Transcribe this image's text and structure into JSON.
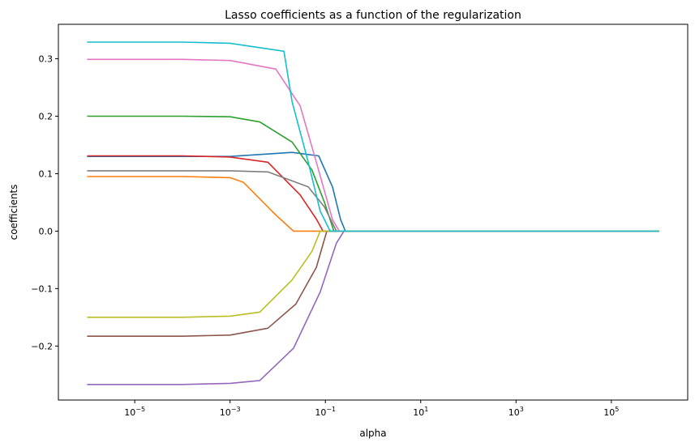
{
  "chart_data": {
    "type": "line",
    "title": "Lasso coefficients as a function of the regularization",
    "xlabel": "alpha",
    "ylabel": "coefficients",
    "xscale": "log",
    "xlim": [
      2.5e-07,
      4000000.0
    ],
    "ylim": [
      -0.294,
      0.36
    ],
    "grid": false,
    "x_ticks": [
      {
        "base": "10",
        "exp": "−5",
        "value": 1e-05
      },
      {
        "base": "10",
        "exp": "−3",
        "value": 0.001
      },
      {
        "base": "10",
        "exp": "−1",
        "value": 0.1
      },
      {
        "base": "10",
        "exp": "1",
        "value": 10
      },
      {
        "base": "10",
        "exp": "3",
        "value": 1000
      },
      {
        "base": "10",
        "exp": "5",
        "value": 100000
      }
    ],
    "y_ticks": [
      {
        "label": "−0.2",
        "value": -0.2
      },
      {
        "label": "−0.1",
        "value": -0.1
      },
      {
        "label": "0.0",
        "value": 0
      },
      {
        "label": "0.1",
        "value": 0.1
      },
      {
        "label": "0.2",
        "value": 0.2
      },
      {
        "label": "0.3",
        "value": 0.3
      }
    ],
    "series": [
      {
        "color": "#1f77b4",
        "x": [
          1e-06,
          0.0001,
          0.001,
          0.02,
          0.0724,
          0.141,
          0.209,
          0.263,
          1000000.0
        ],
        "y": [
          0.13,
          0.13,
          0.13,
          0.137,
          0.131,
          0.077,
          0.02,
          0,
          0
        ]
      },
      {
        "color": "#ff7f0e",
        "x": [
          1e-06,
          0.0001,
          0.001,
          0.0019,
          0.0091,
          0.0214,
          1000000.0
        ],
        "y": [
          0.095,
          0.095,
          0.093,
          0.085,
          0.028,
          0,
          0
        ]
      },
      {
        "color": "#2ca02c",
        "x": [
          1e-06,
          0.0001,
          0.001,
          0.0042,
          0.02,
          0.0525,
          0.0955,
          0.151,
          1000000.0
        ],
        "y": [
          0.2,
          0.2,
          0.199,
          0.19,
          0.155,
          0.106,
          0.05,
          0,
          0
        ]
      },
      {
        "color": "#d62728",
        "x": [
          1e-06,
          0.0001,
          0.001,
          0.0062,
          0.0295,
          0.0646,
          0.089,
          1000000.0
        ],
        "y": [
          0.131,
          0.131,
          0.129,
          0.12,
          0.063,
          0.021,
          0,
          0
        ]
      },
      {
        "color": "#9467bd",
        "x": [
          1e-06,
          0.0001,
          0.001,
          0.0042,
          0.0214,
          0.0776,
          0.17,
          0.245,
          1000000.0
        ],
        "y": [
          -0.267,
          -0.267,
          -0.265,
          -0.26,
          -0.204,
          -0.106,
          -0.021,
          0,
          0
        ]
      },
      {
        "color": "#8c564b",
        "x": [
          1e-06,
          0.0001,
          0.001,
          0.0062,
          0.024,
          0.0646,
          0.107,
          1000000.0
        ],
        "y": [
          -0.183,
          -0.183,
          -0.181,
          -0.169,
          -0.127,
          -0.063,
          0,
          0
        ]
      },
      {
        "color": "#e377c2",
        "x": [
          1e-06,
          0.0001,
          0.001,
          0.0091,
          0.0295,
          0.0646,
          0.141,
          0.195,
          1000000.0
        ],
        "y": [
          0.299,
          0.299,
          0.297,
          0.282,
          0.218,
          0.12,
          0.02,
          0,
          0
        ]
      },
      {
        "color": "#7f7f7f",
        "x": [
          1e-06,
          0.0001,
          0.001,
          0.0062,
          0.0437,
          0.0955,
          0.17,
          1000000.0
        ],
        "y": [
          0.105,
          0.105,
          0.105,
          0.103,
          0.077,
          0.042,
          0,
          0
        ]
      },
      {
        "color": "#bcbd22",
        "x": [
          1e-06,
          0.0001,
          0.001,
          0.0042,
          0.02,
          0.0525,
          0.0776,
          1000000.0
        ],
        "y": [
          -0.15,
          -0.15,
          -0.148,
          -0.141,
          -0.085,
          -0.035,
          0,
          0
        ]
      },
      {
        "color": "#17becf",
        "x": [
          1e-06,
          0.0001,
          0.001,
          0.0135,
          0.02,
          0.0437,
          0.0776,
          0.126,
          1000000.0
        ],
        "y": [
          0.329,
          0.329,
          0.327,
          0.313,
          0.225,
          0.12,
          0.035,
          0,
          0
        ]
      }
    ]
  }
}
